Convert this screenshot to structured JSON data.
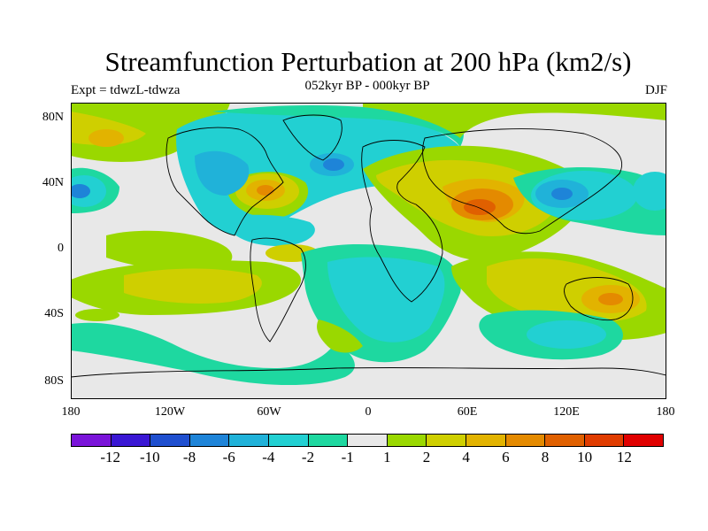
{
  "title": "Streamfunction Perturbation at 200 hPa (km2/s)",
  "subtitle": "052kyr BP - 000kyr BP",
  "experiment": "Expt = tdwzL-tdwza",
  "season": "DJF",
  "y_ticks": [
    "80N",
    "40N",
    "0",
    "40S",
    "80S"
  ],
  "x_ticks": [
    "180",
    "120W",
    "60W",
    "0",
    "60E",
    "120E",
    "180"
  ],
  "colorbar": {
    "labels": [
      "-12",
      "-10",
      "-8",
      "-6",
      "-4",
      "-2",
      "-1",
      "1",
      "2",
      "4",
      "6",
      "8",
      "10",
      "12"
    ],
    "colors": [
      "#7a14d9",
      "#3a17d4",
      "#1f4fcf",
      "#1e84d8",
      "#20b2d9",
      "#22d0d2",
      "#1ed8a0",
      "#e8e8e8",
      "#9ad800",
      "#cfcf00",
      "#e2b300",
      "#e48a00",
      "#e06000",
      "#e03c00",
      "#e00000"
    ]
  },
  "colors": {
    "neutral": "#e8e8e8",
    "neg1": "#1ed8a0",
    "neg2": "#22d0d2",
    "neg4": "#20b2d9",
    "neg6": "#1e84d8",
    "pos1": "#9ad800",
    "pos2": "#cfcf00",
    "pos4": "#e2b300",
    "pos6": "#e48a00",
    "pos8": "#e06000",
    "coast": "#000000"
  }
}
